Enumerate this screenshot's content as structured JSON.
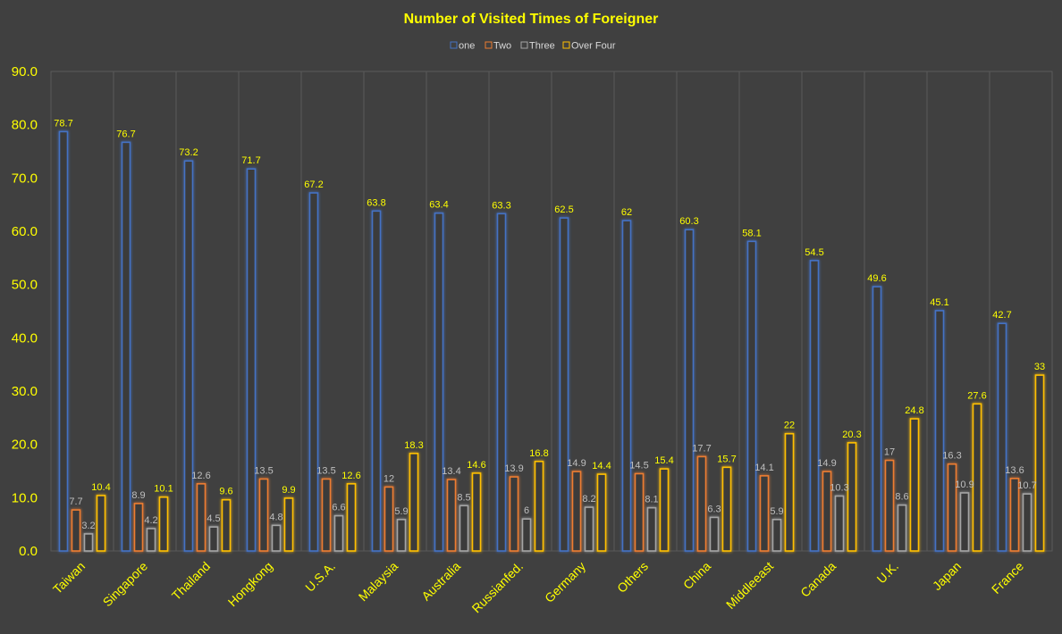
{
  "chart_data": {
    "type": "bar",
    "title": "Number of Visited Times of Foreigner",
    "xlabel": "",
    "ylabel": "",
    "ylim": [
      0,
      90
    ],
    "yticks": [
      "0.0",
      "10.0",
      "20.0",
      "30.0",
      "40.0",
      "50.0",
      "60.0",
      "70.0",
      "80.0",
      "90.0"
    ],
    "grid": "vertical",
    "legend_position": "top",
    "categories": [
      "Taiwan",
      "Singapore",
      "Thailand",
      "Hongkong",
      "U.S.A.",
      "Malaysia",
      "Australia",
      "Russianfed.",
      "Germany",
      "Others",
      "China",
      "Middleeast",
      "Canada",
      "U.K.",
      "Japan",
      "France"
    ],
    "series": [
      {
        "name": "one",
        "color": "#4472c4",
        "values": [
          78.7,
          76.7,
          73.2,
          71.7,
          67.2,
          63.8,
          63.4,
          63.3,
          62.5,
          62,
          60.3,
          58.1,
          54.5,
          49.6,
          45.1,
          42.7
        ],
        "labels": [
          "78.7",
          "76.7",
          "73.2",
          "71.7",
          "67.2",
          "63.8",
          "63.4",
          "63.3",
          "62.5",
          "62",
          "60.3",
          "58.1",
          "54.5",
          "49.6",
          "45.1",
          "42.7"
        ]
      },
      {
        "name": "Two",
        "color": "#ed7d31",
        "values": [
          7.7,
          8.9,
          12.6,
          13.5,
          13.5,
          12,
          13.4,
          13.9,
          14.9,
          14.5,
          17.7,
          14.1,
          14.9,
          17,
          16.3,
          13.6
        ],
        "labels": [
          "7.7",
          "8.9",
          "12.6",
          "13.5",
          "13.5",
          "12",
          "13.4",
          "13.9",
          "14.9",
          "14.5",
          "17.7",
          "14.1",
          "14.9",
          "17",
          "16.3",
          "13.6"
        ]
      },
      {
        "name": "Three",
        "color": "#a5a5a5",
        "values": [
          3.2,
          4.2,
          4.5,
          4.8,
          6.6,
          5.9,
          8.5,
          6,
          8.2,
          8.1,
          6.3,
          5.9,
          10.3,
          8.6,
          10.9,
          10.7
        ],
        "labels": [
          "3.2",
          "4.2",
          "4.5",
          "4.8",
          "6.6",
          "5.9",
          "8.5",
          "6",
          "8.2",
          "8.1",
          "6.3",
          "5.9",
          "10.3",
          "8.6",
          "10.9",
          "10.7"
        ]
      },
      {
        "name": "Over Four",
        "color": "#ffc000",
        "values": [
          10.4,
          10.1,
          9.6,
          9.9,
          12.6,
          18.3,
          14.6,
          16.8,
          14.4,
          15.4,
          15.7,
          22,
          20.3,
          24.8,
          27.6,
          33
        ],
        "labels": [
          "10.4",
          "10.1",
          "9.6",
          "9.9",
          "12.6",
          "18.3",
          "14.6",
          "16.8",
          "14.4",
          "15.4",
          "15.7",
          "22",
          "20.3",
          "24.8",
          "27.6",
          "33"
        ]
      }
    ]
  }
}
